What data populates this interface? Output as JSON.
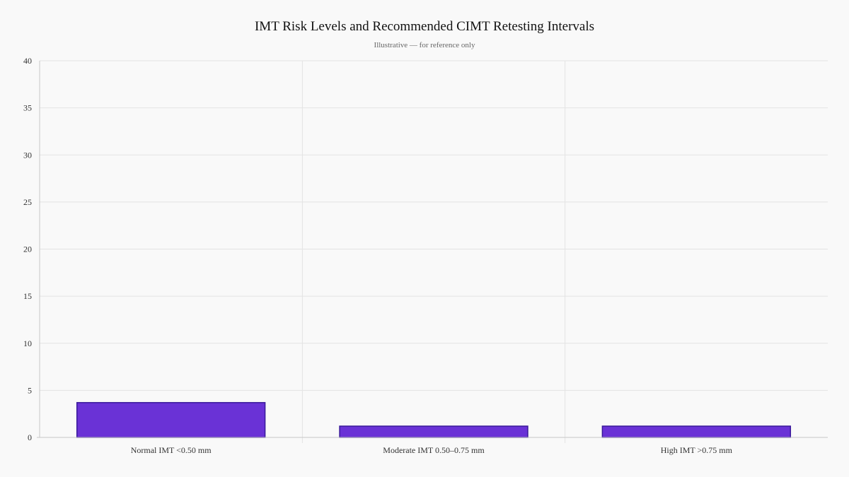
{
  "chart_data": {
    "type": "bar",
    "title": "IMT Risk Levels and Recommended CIMT Retesting Intervals",
    "subtitle": "Illustrative — for reference only",
    "categories": [
      "Normal IMT <0.50 mm",
      "Moderate IMT 0.50–0.75 mm",
      "High IMT >0.75 mm"
    ],
    "values": [
      3.7,
      1.2,
      1.2
    ],
    "ylim": [
      0,
      40
    ],
    "yticks": [
      0,
      5,
      10,
      15,
      20,
      25,
      30,
      35,
      40
    ],
    "xlabel": "",
    "ylabel": "",
    "grid": true,
    "legend": "none",
    "colors": {
      "bar_fill": "#6a32d6",
      "bar_stroke": "#3a1a9a"
    }
  }
}
